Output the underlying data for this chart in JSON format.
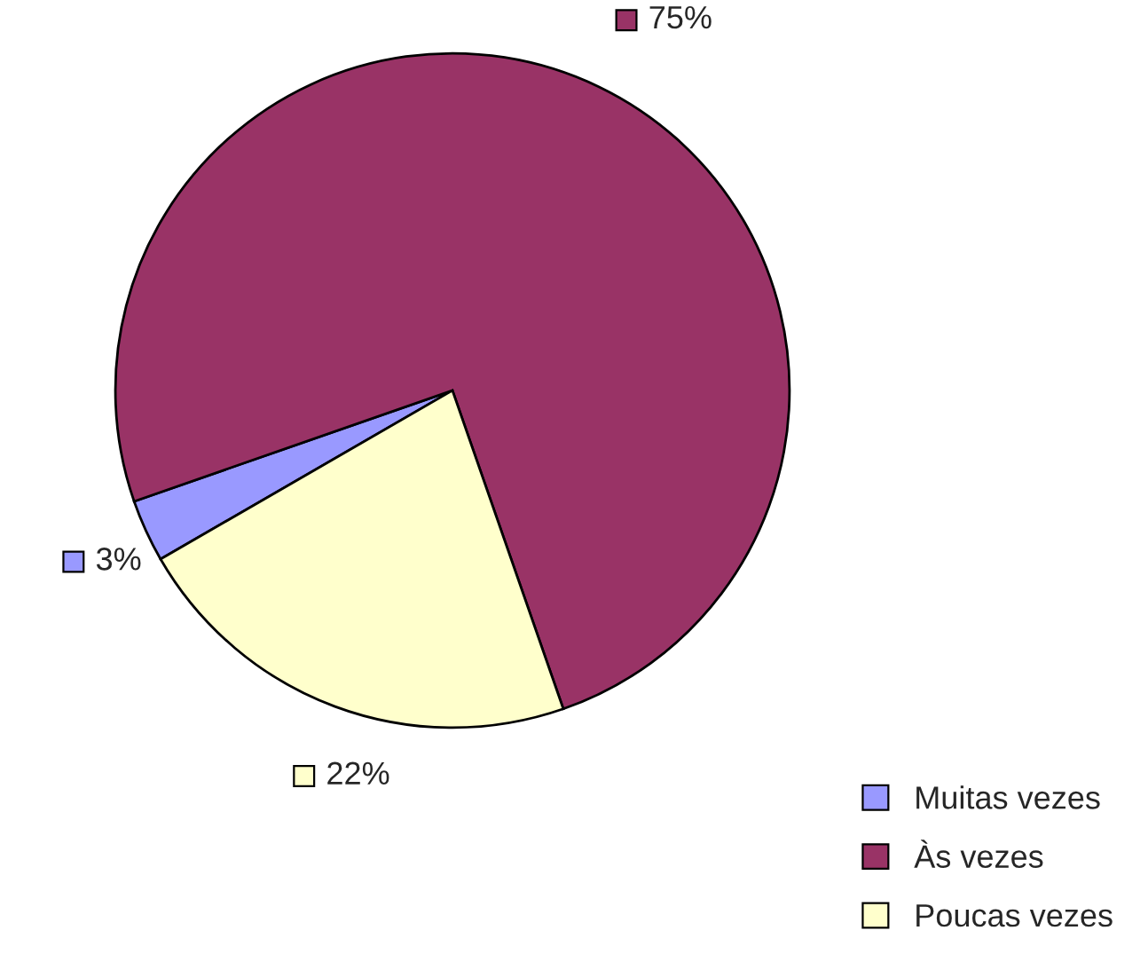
{
  "chart_data": {
    "type": "pie",
    "categories": [
      "Muitas vezes",
      "Às vezes",
      "Poucas vezes"
    ],
    "values": [
      3,
      75,
      22
    ],
    "value_labels": [
      "3%",
      "75%",
      "22%"
    ],
    "colors": [
      "#9999ff",
      "#993366",
      "#ffffcc"
    ],
    "legend": "bottom right"
  }
}
